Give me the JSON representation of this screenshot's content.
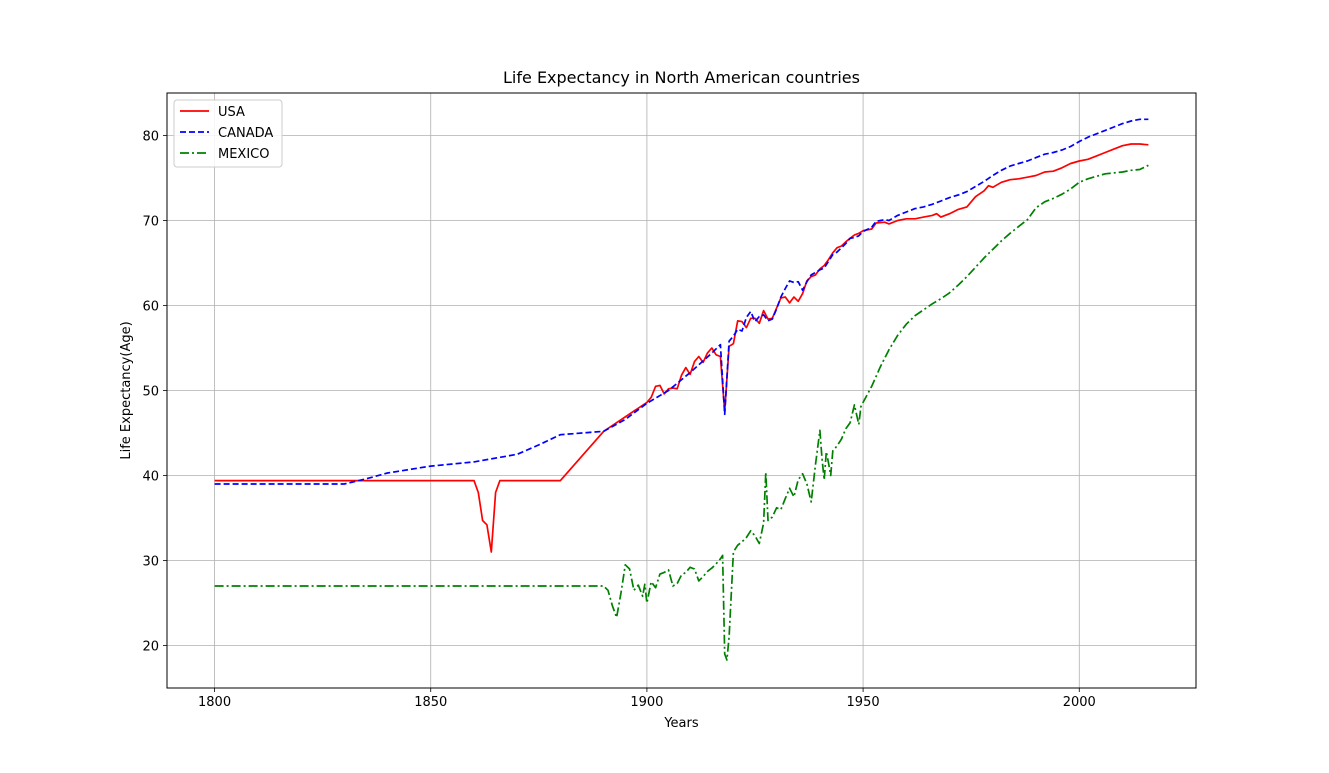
{
  "chart_data": {
    "type": "line",
    "title": "Life Expectancy in North American countries",
    "xlabel": "Years",
    "ylabel": "Life Expectancy(Age)",
    "xlim": [
      1789,
      2027
    ],
    "ylim": [
      15,
      85
    ],
    "xticks": [
      1800,
      1850,
      1900,
      1950,
      2000
    ],
    "yticks": [
      20,
      30,
      40,
      50,
      60,
      70,
      80
    ],
    "grid": true,
    "legend_position": "top-left",
    "series": [
      {
        "name": "USA",
        "color": "#ff0000",
        "style": "solid",
        "points": [
          [
            1800,
            39.4
          ],
          [
            1860,
            39.4
          ],
          [
            1861,
            38
          ],
          [
            1862,
            34.7
          ],
          [
            1863,
            34.2
          ],
          [
            1864,
            31
          ],
          [
            1865,
            38
          ],
          [
            1866,
            39.4
          ],
          [
            1880,
            39.4
          ],
          [
            1890,
            45.2
          ],
          [
            1900,
            48.6
          ],
          [
            1901,
            49.2
          ],
          [
            1902,
            50.5
          ],
          [
            1903,
            50.6
          ],
          [
            1904,
            49.6
          ],
          [
            1905,
            50.2
          ],
          [
            1906,
            50.3
          ],
          [
            1907,
            50.2
          ],
          [
            1908,
            51.8
          ],
          [
            1909,
            52.7
          ],
          [
            1910,
            51.9
          ],
          [
            1911,
            53.4
          ],
          [
            1912,
            54
          ],
          [
            1913,
            53.3
          ],
          [
            1914,
            54.4
          ],
          [
            1915,
            55
          ],
          [
            1916,
            54.2
          ],
          [
            1917,
            54
          ],
          [
            1918,
            47.5
          ],
          [
            1919,
            55.2
          ],
          [
            1920,
            55.5
          ],
          [
            1921,
            58.2
          ],
          [
            1922,
            58.1
          ],
          [
            1923,
            57.4
          ],
          [
            1924,
            58.5
          ],
          [
            1925,
            58.5
          ],
          [
            1926,
            57.9
          ],
          [
            1927,
            59.4
          ],
          [
            1928,
            58.4
          ],
          [
            1929,
            58.5
          ],
          [
            1930,
            59.7
          ],
          [
            1931,
            60.9
          ],
          [
            1932,
            61
          ],
          [
            1933,
            60.3
          ],
          [
            1934,
            61
          ],
          [
            1935,
            60.5
          ],
          [
            1936,
            61.4
          ],
          [
            1937,
            62.9
          ],
          [
            1938,
            63.4
          ],
          [
            1939,
            63.6
          ],
          [
            1940,
            64.3
          ],
          [
            1941,
            64.7
          ],
          [
            1942,
            65.4
          ],
          [
            1943,
            66.2
          ],
          [
            1944,
            66.8
          ],
          [
            1945,
            67
          ],
          [
            1946,
            67.5
          ],
          [
            1947,
            67.9
          ],
          [
            1948,
            68.3
          ],
          [
            1949,
            68.5
          ],
          [
            1950,
            68.8
          ],
          [
            1952,
            69
          ],
          [
            1953,
            69.7
          ],
          [
            1955,
            69.8
          ],
          [
            1956,
            69.6
          ],
          [
            1958,
            70
          ],
          [
            1960,
            70.2
          ],
          [
            1962,
            70.2
          ],
          [
            1964,
            70.4
          ],
          [
            1966,
            70.6
          ],
          [
            1967,
            70.8
          ],
          [
            1968,
            70.4
          ],
          [
            1970,
            70.8
          ],
          [
            1972,
            71.3
          ],
          [
            1974,
            71.6
          ],
          [
            1976,
            72.8
          ],
          [
            1978,
            73.5
          ],
          [
            1979,
            74.1
          ],
          [
            1980,
            73.9
          ],
          [
            1982,
            74.5
          ],
          [
            1984,
            74.8
          ],
          [
            1986,
            74.9
          ],
          [
            1988,
            75.1
          ],
          [
            1990,
            75.3
          ],
          [
            1992,
            75.7
          ],
          [
            1994,
            75.8
          ],
          [
            1996,
            76.2
          ],
          [
            1998,
            76.7
          ],
          [
            2000,
            77
          ],
          [
            2002,
            77.2
          ],
          [
            2004,
            77.6
          ],
          [
            2006,
            78
          ],
          [
            2008,
            78.4
          ],
          [
            2010,
            78.8
          ],
          [
            2012,
            79
          ],
          [
            2014,
            79
          ],
          [
            2016,
            78.9
          ]
        ]
      },
      {
        "name": "CANADA",
        "color": "#0000ff",
        "style": "dashed",
        "points": [
          [
            1800,
            39
          ],
          [
            1830,
            39
          ],
          [
            1835,
            39.6
          ],
          [
            1840,
            40.3
          ],
          [
            1850,
            41.1
          ],
          [
            1860,
            41.6
          ],
          [
            1870,
            42.5
          ],
          [
            1875,
            43.6
          ],
          [
            1880,
            44.8
          ],
          [
            1885,
            45
          ],
          [
            1890,
            45.2
          ],
          [
            1895,
            46.6
          ],
          [
            1900,
            48.5
          ],
          [
            1905,
            50
          ],
          [
            1910,
            52.1
          ],
          [
            1915,
            54.4
          ],
          [
            1917,
            55.4
          ],
          [
            1918,
            47.2
          ],
          [
            1919,
            55.8
          ],
          [
            1920,
            56.4
          ],
          [
            1921,
            57.2
          ],
          [
            1922,
            57
          ],
          [
            1923,
            58.6
          ],
          [
            1924,
            59.3
          ],
          [
            1925,
            58.1
          ],
          [
            1926,
            58.7
          ],
          [
            1927,
            58.9
          ],
          [
            1928,
            58.2
          ],
          [
            1929,
            58.4
          ],
          [
            1930,
            59.6
          ],
          [
            1931,
            61
          ],
          [
            1932,
            62
          ],
          [
            1933,
            62.9
          ],
          [
            1934,
            62.7
          ],
          [
            1935,
            62.8
          ],
          [
            1936,
            61.8
          ],
          [
            1937,
            62.8
          ],
          [
            1938,
            63.6
          ],
          [
            1939,
            63.9
          ],
          [
            1940,
            64.2
          ],
          [
            1941,
            64.4
          ],
          [
            1942,
            65.2
          ],
          [
            1943,
            66
          ],
          [
            1944,
            66.3
          ],
          [
            1945,
            66.8
          ],
          [
            1946,
            67.3
          ],
          [
            1947,
            67.9
          ],
          [
            1948,
            68
          ],
          [
            1949,
            68.2
          ],
          [
            1950,
            68.7
          ],
          [
            1952,
            69.2
          ],
          [
            1953,
            69.9
          ],
          [
            1954,
            70
          ],
          [
            1955,
            70.1
          ],
          [
            1956,
            70
          ],
          [
            1958,
            70.6
          ],
          [
            1960,
            71
          ],
          [
            1962,
            71.4
          ],
          [
            1964,
            71.6
          ],
          [
            1966,
            71.9
          ],
          [
            1968,
            72.3
          ],
          [
            1970,
            72.7
          ],
          [
            1972,
            73
          ],
          [
            1974,
            73.4
          ],
          [
            1976,
            74
          ],
          [
            1978,
            74.6
          ],
          [
            1980,
            75.3
          ],
          [
            1982,
            75.9
          ],
          [
            1984,
            76.4
          ],
          [
            1986,
            76.7
          ],
          [
            1988,
            77
          ],
          [
            1990,
            77.4
          ],
          [
            1992,
            77.8
          ],
          [
            1994,
            78
          ],
          [
            1996,
            78.3
          ],
          [
            1998,
            78.7
          ],
          [
            2000,
            79.3
          ],
          [
            2002,
            79.8
          ],
          [
            2004,
            80.2
          ],
          [
            2006,
            80.6
          ],
          [
            2008,
            81
          ],
          [
            2010,
            81.4
          ],
          [
            2012,
            81.7
          ],
          [
            2014,
            81.9
          ],
          [
            2016,
            81.9
          ]
        ]
      },
      {
        "name": "MEXICO",
        "color": "#008000",
        "style": "dashdot",
        "points": [
          [
            1800,
            27
          ],
          [
            1890,
            27
          ],
          [
            1891,
            26.5
          ],
          [
            1892,
            24.7
          ],
          [
            1893,
            23.3
          ],
          [
            1894,
            26.2
          ],
          [
            1895,
            29.5
          ],
          [
            1896,
            29
          ],
          [
            1897,
            26.5
          ],
          [
            1898,
            27.1
          ],
          [
            1899,
            25.8
          ],
          [
            1899.5,
            27.2
          ],
          [
            1900,
            25
          ],
          [
            1901,
            27.5
          ],
          [
            1902,
            26.8
          ],
          [
            1903,
            28.4
          ],
          [
            1904,
            28.6
          ],
          [
            1905,
            28.9
          ],
          [
            1906,
            27
          ],
          [
            1907,
            27.3
          ],
          [
            1908,
            28.3
          ],
          [
            1909,
            28.6
          ],
          [
            1910,
            29.2
          ],
          [
            1911,
            29
          ],
          [
            1912,
            27.6
          ],
          [
            1913,
            28.1
          ],
          [
            1914,
            28.7
          ],
          [
            1915,
            29.1
          ],
          [
            1916,
            29.6
          ],
          [
            1917,
            30.2
          ],
          [
            1917.5,
            30.6
          ],
          [
            1918,
            19
          ],
          [
            1918.5,
            18.3
          ],
          [
            1919,
            21
          ],
          [
            1920,
            31
          ],
          [
            1921,
            31.8
          ],
          [
            1922,
            32.2
          ],
          [
            1923,
            32.7
          ],
          [
            1924,
            33.5
          ],
          [
            1925,
            32.9
          ],
          [
            1926,
            32
          ],
          [
            1927,
            34.4
          ],
          [
            1927.5,
            40.4
          ],
          [
            1928,
            34.7
          ],
          [
            1929,
            35.1
          ],
          [
            1930,
            36.2
          ],
          [
            1931,
            36
          ],
          [
            1932,
            37.3
          ],
          [
            1933,
            38.5
          ],
          [
            1934,
            37.5
          ],
          [
            1935,
            39.5
          ],
          [
            1936,
            40.2
          ],
          [
            1937,
            39
          ],
          [
            1938,
            36.9
          ],
          [
            1939,
            41.3
          ],
          [
            1940,
            45.3
          ],
          [
            1940.5,
            42
          ],
          [
            1941,
            39.5
          ],
          [
            1941.5,
            42.8
          ],
          [
            1942,
            41.5
          ],
          [
            1942.5,
            40
          ],
          [
            1943,
            42.9
          ],
          [
            1944,
            43.5
          ],
          [
            1945,
            44.3
          ],
          [
            1946,
            45.5
          ],
          [
            1947,
            46.2
          ],
          [
            1948,
            48.3
          ],
          [
            1949,
            46
          ],
          [
            1949.5,
            48.1
          ],
          [
            1950,
            48.6
          ],
          [
            1952,
            50.5
          ],
          [
            1954,
            52.8
          ],
          [
            1956,
            54.8
          ],
          [
            1958,
            56.5
          ],
          [
            1960,
            57.8
          ],
          [
            1962,
            58.8
          ],
          [
            1964,
            59.5
          ],
          [
            1966,
            60.2
          ],
          [
            1968,
            60.8
          ],
          [
            1970,
            61.5
          ],
          [
            1972,
            62.4
          ],
          [
            1974,
            63.4
          ],
          [
            1976,
            64.5
          ],
          [
            1978,
            65.6
          ],
          [
            1980,
            66.6
          ],
          [
            1982,
            67.6
          ],
          [
            1984,
            68.5
          ],
          [
            1986,
            69.3
          ],
          [
            1988,
            70.1
          ],
          [
            1990,
            71.5
          ],
          [
            1992,
            72.2
          ],
          [
            1994,
            72.6
          ],
          [
            1996,
            73.1
          ],
          [
            1998,
            73.7
          ],
          [
            2000,
            74.5
          ],
          [
            2002,
            74.9
          ],
          [
            2004,
            75.2
          ],
          [
            2006,
            75.5
          ],
          [
            2008,
            75.6
          ],
          [
            2010,
            75.7
          ],
          [
            2012,
            75.9
          ],
          [
            2014,
            76
          ],
          [
            2016,
            76.5
          ]
        ]
      }
    ]
  }
}
